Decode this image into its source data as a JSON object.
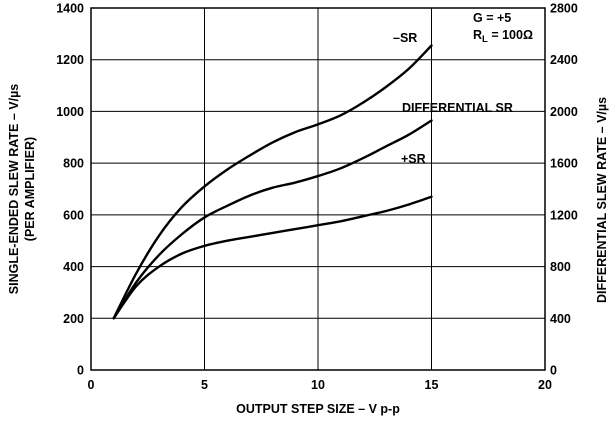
{
  "chart_data": {
    "type": "line",
    "title": "",
    "xlabel": "OUTPUT STEP SIZE – V p-p",
    "ylabel_left_line1": "SINGLE-ENDED SLEW RATE – V/µs",
    "ylabel_left_line2": "(PER AMPLIFIER)",
    "ylabel_right": "DIFFERENTIAL SLEW RATE – V/µs",
    "xlim": [
      0,
      20
    ],
    "ylim_left": [
      0,
      1400
    ],
    "ylim_right": [
      0,
      2800
    ],
    "x_ticks": [
      "0",
      "5",
      "10",
      "15",
      "20"
    ],
    "y_ticks_left": [
      "0",
      "200",
      "400",
      "600",
      "800",
      "1000",
      "1200",
      "1400"
    ],
    "y_ticks_right": [
      "0",
      "400",
      "800",
      "1200",
      "1600",
      "2000",
      "2400",
      "2800"
    ],
    "grid": true,
    "annotation_gain": "G = +5",
    "annotation_load_prefix": "R",
    "annotation_load_sub": "L",
    "annotation_load_value": " = 100Ω",
    "series": [
      {
        "name": "–SR",
        "axis": "left",
        "x": [
          1,
          2,
          3,
          4,
          5,
          6,
          7,
          8,
          9,
          10,
          11,
          12,
          13,
          14,
          15
        ],
        "y": [
          200,
          375,
          520,
          630,
          710,
          775,
          830,
          880,
          920,
          950,
          985,
          1035,
          1095,
          1165,
          1255
        ]
      },
      {
        "name": "DIFFERENTIAL SR",
        "axis": "left",
        "x": [
          1,
          2,
          3,
          4,
          5,
          6,
          7,
          8,
          9,
          10,
          11,
          12,
          13,
          14,
          15
        ],
        "y": [
          200,
          340,
          445,
          525,
          590,
          635,
          675,
          705,
          725,
          750,
          780,
          820,
          865,
          910,
          965
        ]
      },
      {
        "name": "+SR",
        "axis": "left",
        "x": [
          1,
          2,
          3,
          4,
          5,
          6,
          7,
          8,
          9,
          10,
          11,
          12,
          13,
          14,
          15
        ],
        "y": [
          200,
          325,
          400,
          450,
          480,
          500,
          515,
          530,
          545,
          560,
          575,
          595,
          615,
          640,
          670
        ]
      }
    ]
  }
}
